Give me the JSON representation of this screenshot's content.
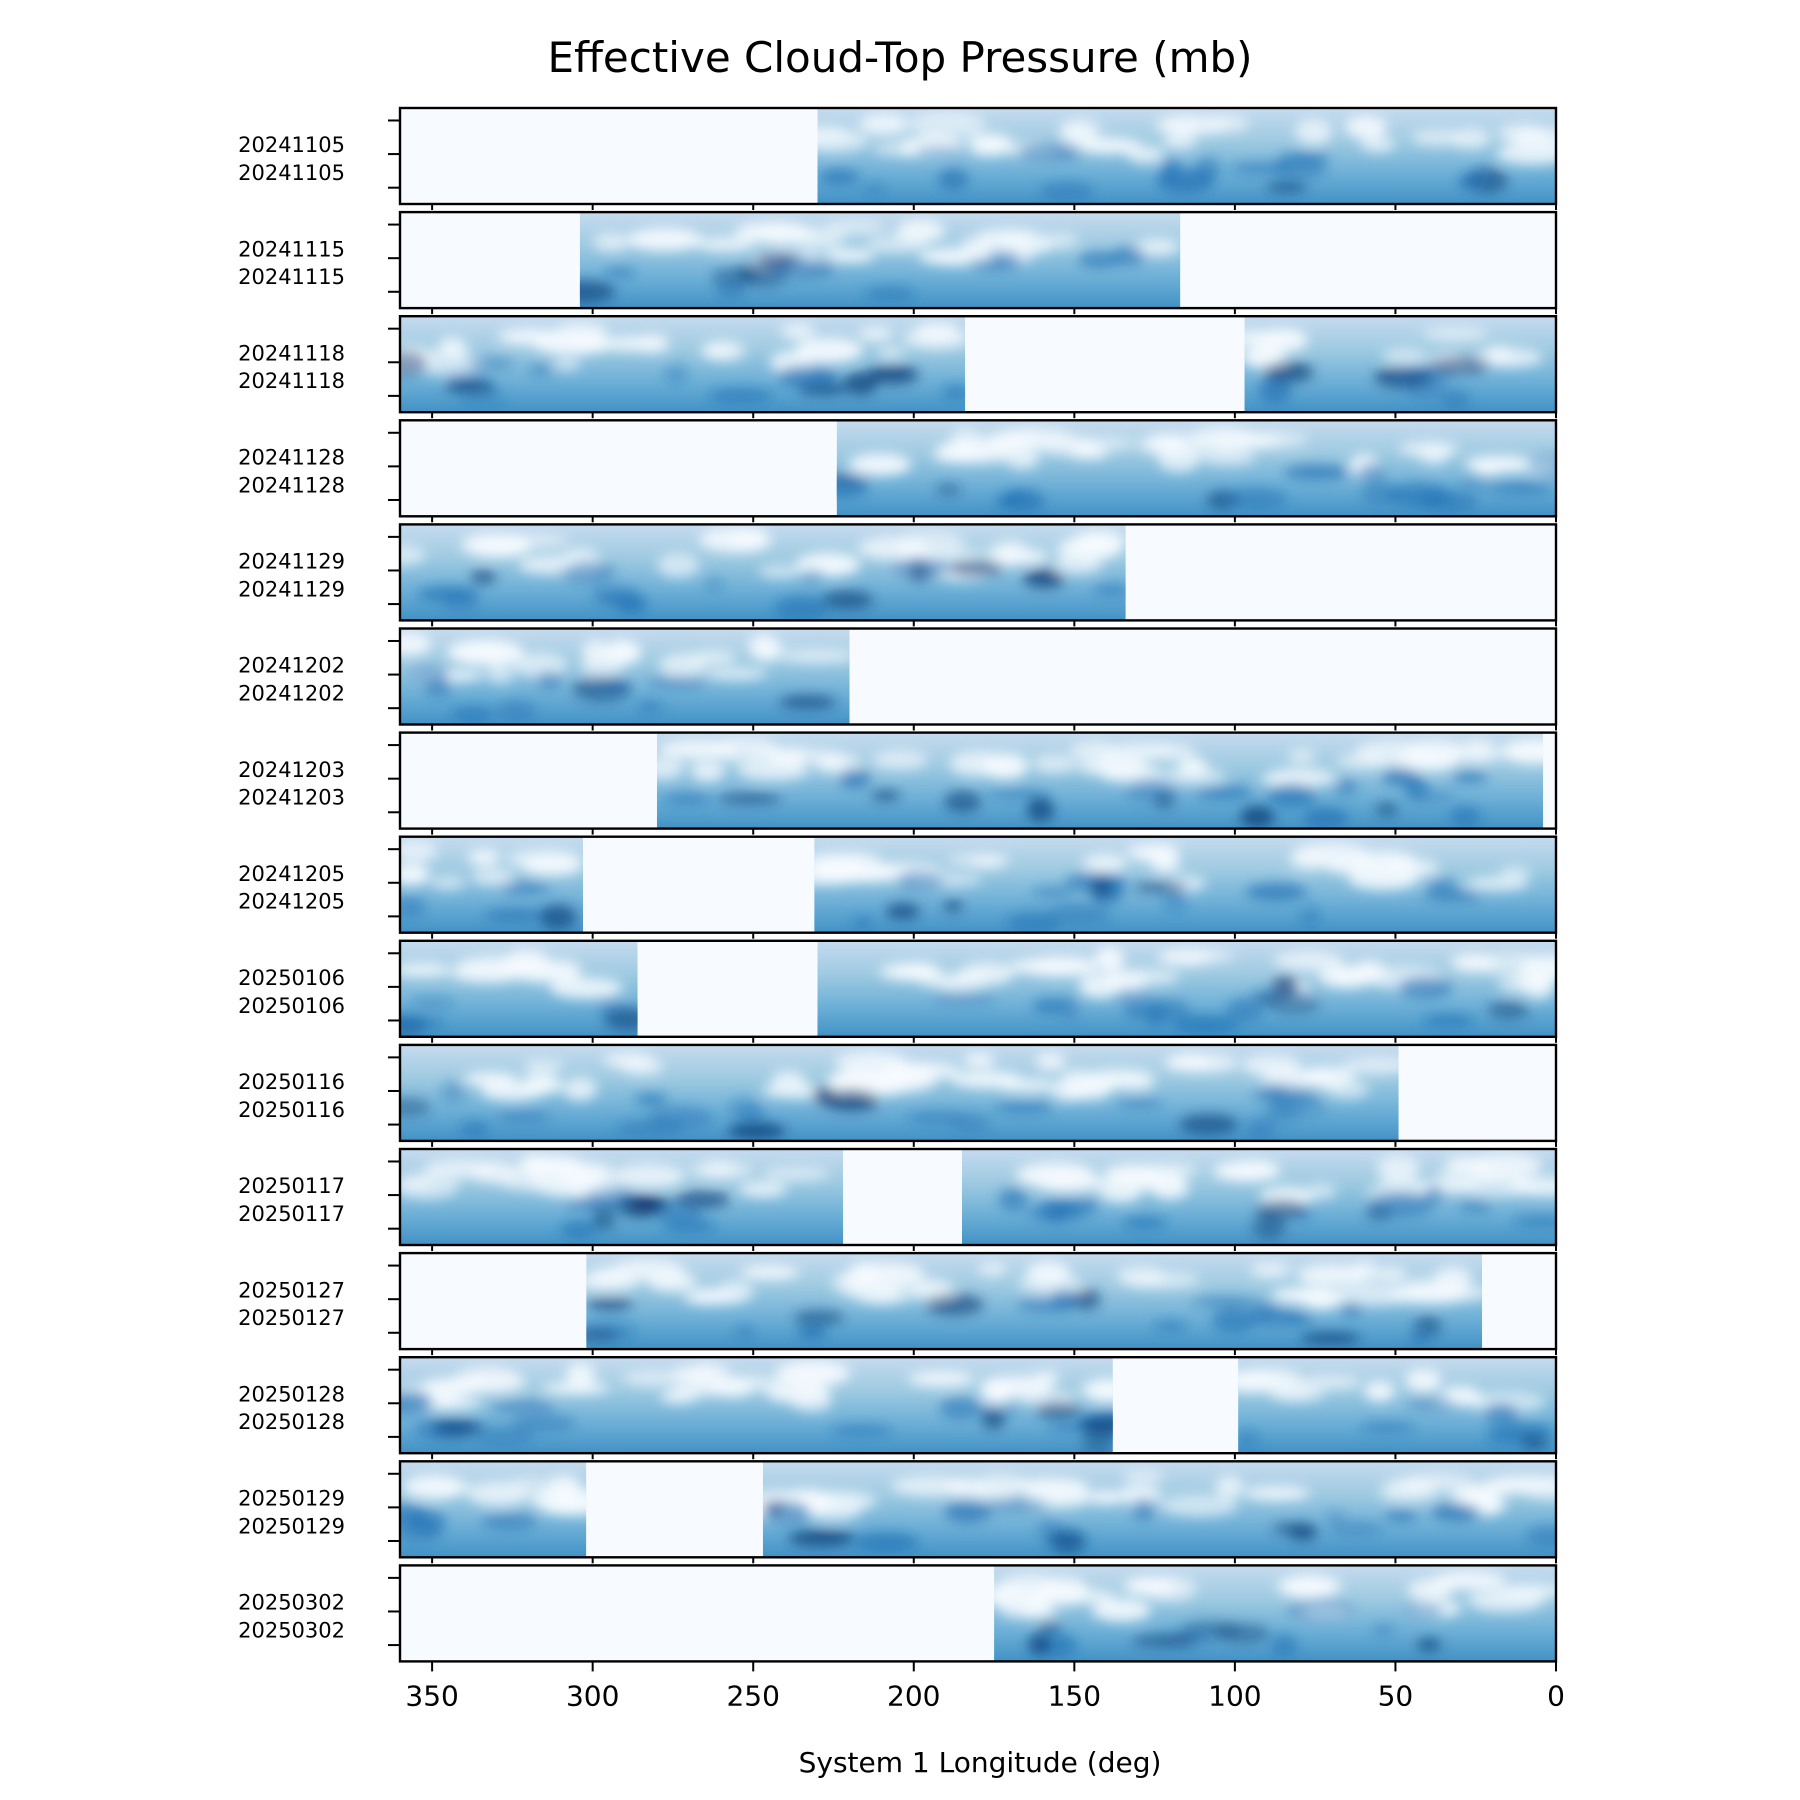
{
  "chart_data": {
    "type": "heatmap",
    "title": "Effective Cloud-Top Pressure (mb)",
    "xlabel": "System 1 Longitude (deg)",
    "xlim": [
      360,
      0
    ],
    "xticks": [
      350,
      300,
      250,
      200,
      150,
      100,
      50,
      0
    ],
    "xtick_labels": [
      "350",
      "300",
      "250",
      "200",
      "150",
      "100",
      "50",
      "0"
    ],
    "colormap": {
      "name": "Blues",
      "low_color": "#f7fbff",
      "mid_color": "#6baed6",
      "high_color": "#08306b"
    },
    "rows": [
      {
        "date": "20241105",
        "label_top": "20241105",
        "label_bottom": "20241105",
        "coverage": [
          [
            230,
            0
          ]
        ]
      },
      {
        "date": "20241115",
        "label_top": "20241115",
        "label_bottom": "20241115",
        "coverage": [
          [
            304,
            117
          ]
        ]
      },
      {
        "date": "20241118",
        "label_top": "20241118",
        "label_bottom": "20241118",
        "coverage": [
          [
            360,
            184
          ],
          [
            97,
            0
          ]
        ]
      },
      {
        "date": "20241128",
        "label_top": "20241128",
        "label_bottom": "20241128",
        "coverage": [
          [
            224,
            0
          ]
        ]
      },
      {
        "date": "20241129",
        "label_top": "20241129",
        "label_bottom": "20241129",
        "coverage": [
          [
            360,
            134
          ]
        ]
      },
      {
        "date": "20241202",
        "label_top": "20241202",
        "label_bottom": "20241202",
        "coverage": [
          [
            360,
            220
          ]
        ]
      },
      {
        "date": "20241203",
        "label_top": "20241203",
        "label_bottom": "20241203",
        "coverage": [
          [
            280,
            4
          ]
        ]
      },
      {
        "date": "20241205",
        "label_top": "20241205",
        "label_bottom": "20241205",
        "coverage": [
          [
            360,
            303
          ],
          [
            231,
            0
          ]
        ]
      },
      {
        "date": "20250106",
        "label_top": "20250106",
        "label_bottom": "20250106",
        "coverage": [
          [
            360,
            286
          ],
          [
            230,
            0
          ]
        ]
      },
      {
        "date": "20250116",
        "label_top": "20250116",
        "label_bottom": "20250116",
        "coverage": [
          [
            360,
            49
          ]
        ]
      },
      {
        "date": "20250117",
        "label_top": "20250117",
        "label_bottom": "20250117",
        "coverage": [
          [
            360,
            222
          ],
          [
            185,
            0
          ]
        ]
      },
      {
        "date": "20250127",
        "label_top": "20250127",
        "label_bottom": "20250127",
        "coverage": [
          [
            302,
            23
          ]
        ]
      },
      {
        "date": "20250128",
        "label_top": "20250128",
        "label_bottom": "20250128",
        "coverage": [
          [
            360,
            138
          ],
          [
            99,
            0
          ]
        ]
      },
      {
        "date": "20250129",
        "label_top": "20250129",
        "label_bottom": "20250129",
        "coverage": [
          [
            360,
            302
          ],
          [
            247,
            0
          ]
        ]
      },
      {
        "date": "20250302",
        "label_top": "20250302",
        "label_bottom": "20250302",
        "coverage": [
          [
            175,
            0
          ]
        ]
      }
    ]
  }
}
